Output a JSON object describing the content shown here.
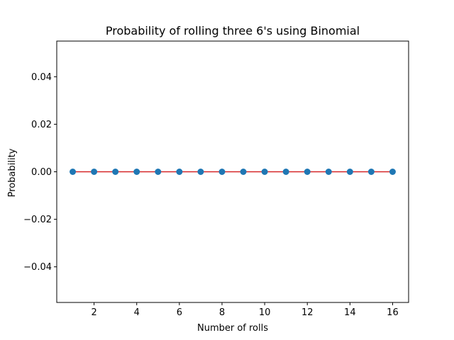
{
  "chart_data": {
    "type": "scatter",
    "title": "Probability of rolling three 6's using Binomial",
    "xlabel": "Number of rolls",
    "ylabel": "Probability",
    "xlim": [
      0.25,
      16.75
    ],
    "ylim": [
      -0.055,
      0.055
    ],
    "xticks": [
      2,
      4,
      6,
      8,
      10,
      12,
      14,
      16
    ],
    "xtick_labels": [
      "2",
      "4",
      "6",
      "8",
      "10",
      "12",
      "14",
      "16"
    ],
    "yticks": [
      -0.04,
      -0.02,
      0.0,
      0.02,
      0.04
    ],
    "ytick_labels": [
      "−0.04",
      "−0.02",
      "0.00",
      "0.02",
      "0.04"
    ],
    "grid": false,
    "series": [
      {
        "x": [
          1,
          2,
          3,
          4,
          5,
          6,
          7,
          8,
          9,
          10,
          11,
          12,
          13,
          14,
          15,
          16
        ],
        "y": [
          0,
          0,
          0,
          0,
          0,
          0,
          0,
          0,
          0,
          0,
          0,
          0,
          0,
          0,
          0,
          0
        ],
        "marker_color": "#1f77b4",
        "stem_baseline_color": "#d62728"
      }
    ]
  }
}
